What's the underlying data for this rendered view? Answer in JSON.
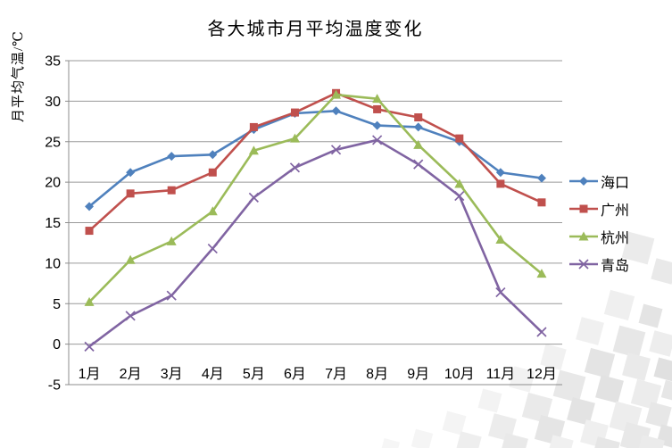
{
  "chart_data": {
    "type": "line",
    "title": "各大城市月平均温度变化",
    "xlabel": "",
    "ylabel": "月平均气温/℃",
    "categories": [
      "1月",
      "2月",
      "3月",
      "4月",
      "5月",
      "6月",
      "7月",
      "8月",
      "9月",
      "10月",
      "11月",
      "12月"
    ],
    "series": [
      {
        "key": "haikou",
        "name": "海口",
        "color": "#4F81BD",
        "marker": "diamond",
        "values": [
          17.0,
          21.2,
          23.2,
          23.4,
          26.5,
          28.5,
          28.8,
          27.0,
          26.8,
          25.0,
          21.2,
          20.5
        ]
      },
      {
        "key": "guangzhou",
        "name": "广州",
        "color": "#C0504D",
        "marker": "square",
        "values": [
          14.0,
          18.6,
          19.0,
          21.2,
          26.8,
          28.6,
          31.0,
          29.0,
          28.0,
          25.4,
          19.8,
          17.5
        ]
      },
      {
        "key": "hangzhou",
        "name": "杭州",
        "color": "#9BBB59",
        "marker": "triangle",
        "values": [
          5.2,
          10.4,
          12.7,
          16.4,
          23.9,
          25.4,
          30.8,
          30.3,
          24.6,
          19.8,
          12.9,
          8.7
        ]
      },
      {
        "key": "qingdao",
        "name": "青岛",
        "color": "#8064A2",
        "marker": "x",
        "values": [
          -0.3,
          3.5,
          6.0,
          11.8,
          18.1,
          21.8,
          24.0,
          25.2,
          22.2,
          18.3,
          6.4,
          1.5
        ]
      }
    ],
    "ylim": [
      -5,
      35
    ],
    "ytick_step": 5,
    "grid": true,
    "legend_position": "right",
    "gridline_color": "#9a9a9a",
    "axis_color": "#8c8c8c",
    "text_color": "#000000"
  }
}
